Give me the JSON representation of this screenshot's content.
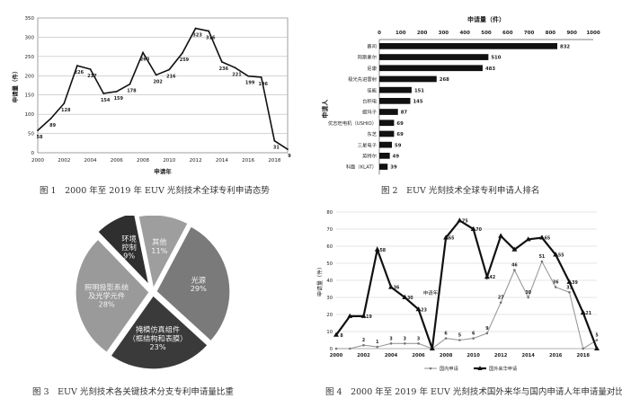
{
  "captions": {
    "fig1": "图 1　2000 年至 2019 年 EUV 光刻技术全球专利申请态势",
    "fig2": "图 2　EUV 光刻技术全球专利申请人排名",
    "fig3": "图 3　EUV 光刻技术各关键技术分支专利申请量比重",
    "fig4": "图 4　2000 年至 2019 年 EUV 光刻技术国外来华与国内申请人年申请量对比"
  },
  "chart_data": [
    {
      "id": "fig1",
      "type": "line",
      "title": "",
      "xlabel": "申请年",
      "ylabel": "申请量（件）",
      "x": [
        2000,
        2001,
        2002,
        2003,
        2004,
        2005,
        2006,
        2007,
        2008,
        2009,
        2010,
        2011,
        2012,
        2013,
        2014,
        2015,
        2016,
        2017,
        2018,
        2019
      ],
      "values": [
        58,
        89,
        128,
        226,
        217,
        154,
        159,
        178,
        260,
        202,
        216,
        259,
        323,
        316,
        236,
        221,
        199,
        196,
        31,
        9
      ],
      "xticks": [
        "2000",
        "2002",
        "2004",
        "2006",
        "2008",
        "2010",
        "2012",
        "2014",
        "2016",
        "2018"
      ],
      "yticks": [
        "0",
        "50",
        "100",
        "150",
        "200",
        "250",
        "300",
        "350"
      ],
      "ylim": [
        0,
        350
      ],
      "grid": true
    },
    {
      "id": "fig2",
      "type": "bar",
      "orientation": "horizontal",
      "title": "申请量（件）",
      "xlabel": "申请量（件）",
      "ylabel": "申请人",
      "categories": [
        "蔡司",
        "阿斯麦尔",
        "尼康",
        "极光先进雷射",
        "佳能",
        "台积电",
        "姬玛子",
        "优志旺电机（USHIO）",
        "东芝",
        "三星电子",
        "英特尔",
        "科磊（KLAT）"
      ],
      "values": [
        832,
        510,
        483,
        268,
        151,
        145,
        87,
        69,
        69,
        59,
        49,
        39
      ],
      "xticks": [
        "0",
        "100",
        "200",
        "300",
        "400",
        "500",
        "600",
        "700",
        "800",
        "900",
        "1000"
      ],
      "xlim": [
        0,
        1000
      ]
    },
    {
      "id": "fig3",
      "type": "pie",
      "labels": [
        {
          "lines": [
            "光源",
            "29%"
          ]
        },
        {
          "lines": [
            "掩模仿真组件",
            "（框结构和表膜）",
            "23%"
          ]
        },
        {
          "lines": [
            "照明投影系统",
            "及光学元件",
            "28%"
          ]
        },
        {
          "lines": [
            "环境",
            "控制",
            "9%"
          ]
        },
        {
          "lines": [
            "其他",
            "11%"
          ]
        }
      ],
      "values": [
        29,
        23,
        28,
        9,
        11
      ],
      "colors": [
        "#7a7a7a",
        "#3a3a3a",
        "#9a9a9a",
        "#2f2f2f",
        "#9e9e9e"
      ]
    },
    {
      "id": "fig4",
      "type": "line",
      "xlabel": "申请年",
      "ylabel": "申请量（件）",
      "x": [
        2000,
        2001,
        2002,
        2003,
        2004,
        2005,
        2006,
        2007,
        2008,
        2009,
        2010,
        2011,
        2012,
        2013,
        2014,
        2015,
        2016,
        2017,
        2018,
        2019
      ],
      "series": [
        {
          "name": "国内申请",
          "values": [
            0,
            0,
            2,
            1,
            3,
            3,
            3,
            0,
            6,
            5,
            6,
            9,
            27,
            46,
            30,
            51,
            36,
            33,
            0,
            5
          ],
          "labels": [
            "",
            "",
            "2",
            "1",
            "3",
            "3",
            "3",
            "",
            "6",
            "5",
            "6",
            "9",
            "27",
            "46",
            "30",
            "51",
            "36",
            "33",
            "",
            "5"
          ]
        },
        {
          "name": "国外来华申请",
          "values": [
            8,
            19,
            19,
            58,
            36,
            30,
            23,
            0,
            65,
            75,
            70,
            42,
            66,
            58,
            64,
            65,
            55,
            39,
            21,
            0
          ],
          "labels": [
            "8",
            "",
            "19",
            "58",
            "36",
            "30",
            "23",
            "",
            "65",
            "75",
            "70",
            "42",
            "",
            "",
            "",
            "65",
            "55",
            "39",
            "21",
            ""
          ]
        }
      ],
      "xticks": [
        "2000",
        "2002",
        "2004",
        "2006",
        "2008",
        "2010",
        "2012",
        "2014",
        "2016",
        "2018"
      ],
      "yticks": [
        "0",
        "10",
        "20",
        "30",
        "40",
        "50",
        "60",
        "70",
        "80"
      ],
      "ylim": [
        0,
        80
      ],
      "legend": "bottom",
      "grid": true
    }
  ]
}
